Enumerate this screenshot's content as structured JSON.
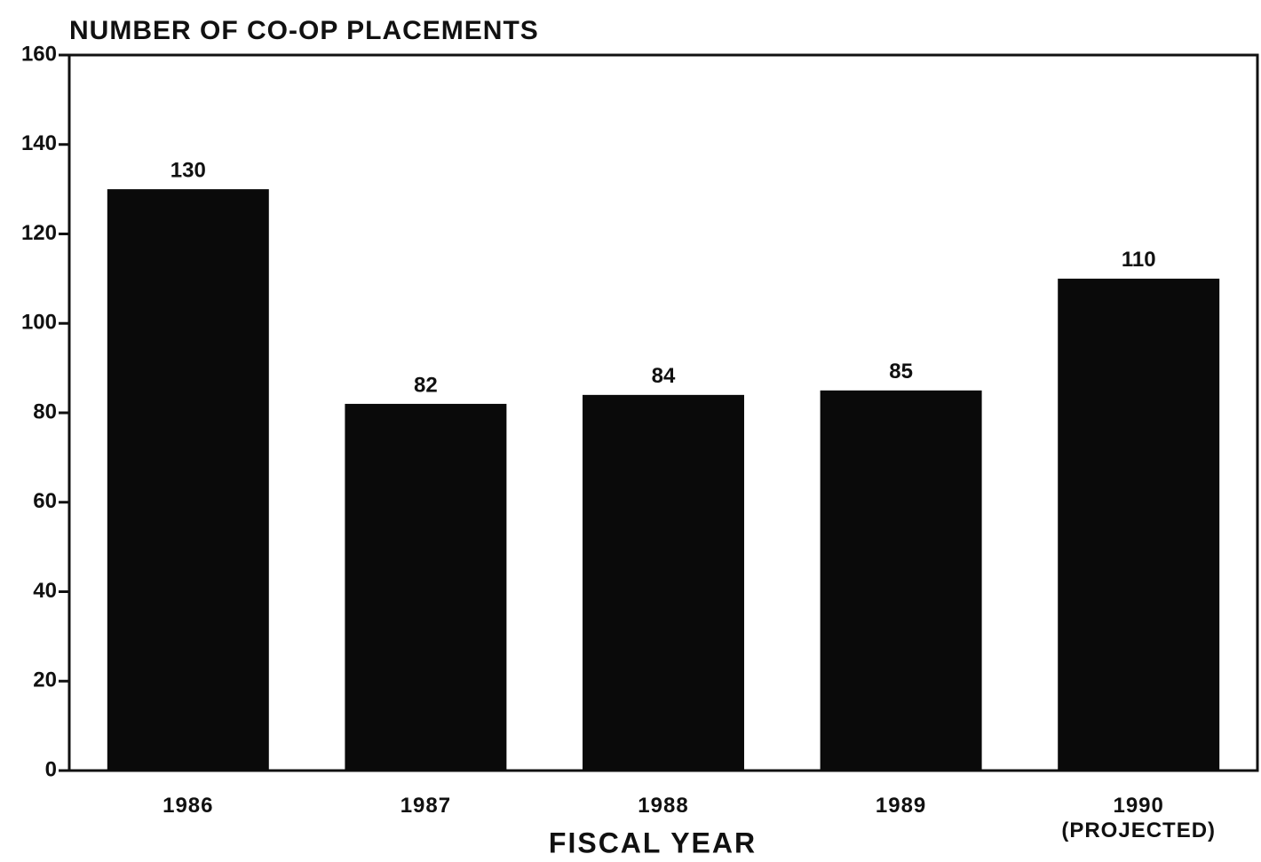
{
  "chart_data": {
    "type": "bar",
    "title": "NUMBER OF CO-OP PLACEMENTS",
    "x_label": "FISCAL YEAR",
    "categories": [
      "1986",
      "1987",
      "1988",
      "1989",
      "1990\n(PROJECTED)"
    ],
    "values": [
      130,
      82,
      84,
      85,
      110
    ],
    "color": "#0a0a0a",
    "ylim": [
      0,
      160
    ],
    "yticks": [
      0,
      20,
      40,
      60,
      80,
      100,
      120,
      140,
      160
    ],
    "grid": false
  }
}
